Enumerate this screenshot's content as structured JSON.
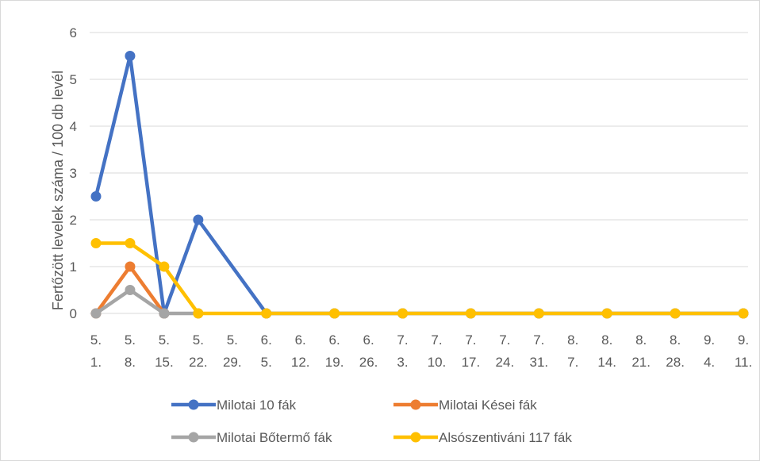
{
  "chart_data": {
    "type": "line",
    "title": "",
    "xlabel": "",
    "ylabel": "Fertőzött levelek száma / 100 db levél",
    "ylim": [
      0,
      6
    ],
    "yticks": [
      0,
      1,
      2,
      3,
      4,
      5,
      6
    ],
    "grid": true,
    "legend_position": "bottom",
    "categories": [
      [
        "5.",
        "1."
      ],
      [
        "5.",
        "8."
      ],
      [
        "5.",
        "15."
      ],
      [
        "5.",
        "22."
      ],
      [
        "5.",
        "29."
      ],
      [
        "6.",
        "5."
      ],
      [
        "6.",
        "12."
      ],
      [
        "6.",
        "19."
      ],
      [
        "6.",
        "26."
      ],
      [
        "7.",
        "3."
      ],
      [
        "7.",
        "10."
      ],
      [
        "7.",
        "17."
      ],
      [
        "7.",
        "24."
      ],
      [
        "7.",
        "31."
      ],
      [
        "8.",
        "7."
      ],
      [
        "8.",
        "14."
      ],
      [
        "8.",
        "21."
      ],
      [
        "8.",
        "28."
      ],
      [
        "9.",
        "4."
      ],
      [
        "9.",
        "11."
      ]
    ],
    "series": [
      {
        "name": "Milotai 10 fák",
        "color": "#4472c4",
        "values": [
          2.5,
          5.5,
          0,
          2,
          null,
          0,
          null,
          0,
          null,
          0,
          null,
          0,
          null,
          0,
          null,
          0,
          null,
          0,
          null,
          0
        ]
      },
      {
        "name": "Milotai Kései fák",
        "color": "#ed7d31",
        "values": [
          0,
          1,
          0,
          null,
          null,
          null,
          null,
          null,
          null,
          null,
          null,
          null,
          null,
          null,
          null,
          null,
          null,
          null,
          null,
          null
        ]
      },
      {
        "name": "Milotai Bőtermő fák",
        "color": "#a5a5a5",
        "values": [
          0,
          0.5,
          0,
          0,
          null,
          null,
          null,
          null,
          null,
          null,
          null,
          null,
          null,
          null,
          null,
          null,
          null,
          null,
          null,
          null
        ]
      },
      {
        "name": "Alsószentiváni 117 fák",
        "color": "#ffc000",
        "values": [
          1.5,
          1.5,
          1,
          0,
          null,
          0,
          null,
          0,
          null,
          0,
          null,
          0,
          null,
          0,
          null,
          0,
          null,
          0,
          null,
          0
        ]
      }
    ]
  }
}
